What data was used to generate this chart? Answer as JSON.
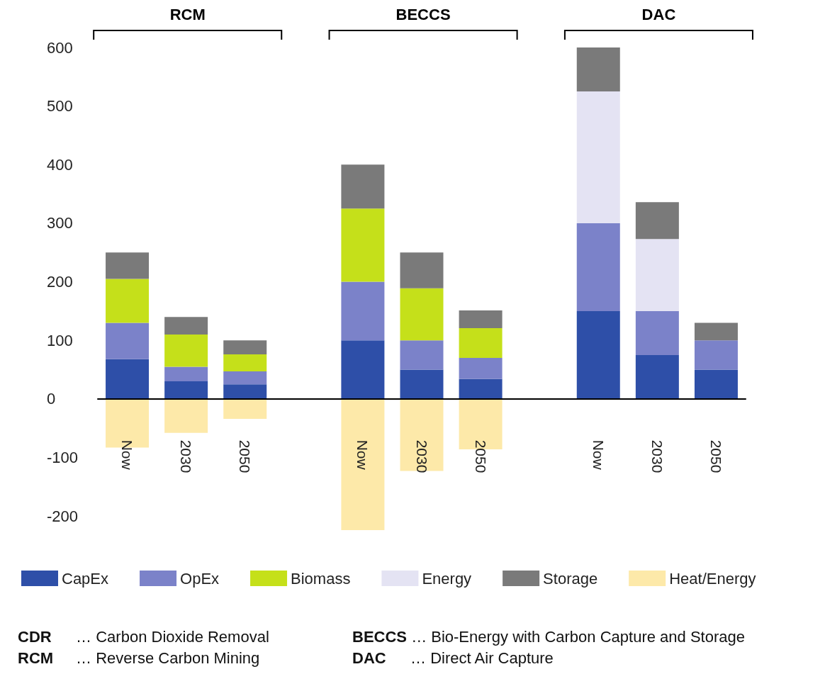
{
  "chart_data": {
    "type": "bar",
    "stacked": true,
    "categories": [
      "Now",
      "2030",
      "2050",
      null,
      "Now",
      "2030",
      "2050",
      null,
      "Now",
      "2030",
      "2050"
    ],
    "series": [
      {
        "name": "CapEx",
        "color": "#2e4fa8",
        "values": [
          68,
          30,
          25,
          null,
          100,
          50,
          34,
          null,
          150,
          75,
          50
        ]
      },
      {
        "name": "OpEx",
        "color": "#7b82c9",
        "values": [
          62,
          25,
          22,
          null,
          100,
          50,
          36,
          null,
          150,
          75,
          50
        ]
      },
      {
        "name": "Biomass",
        "color": "#c5e01a",
        "values": [
          75,
          55,
          29,
          null,
          125,
          89,
          51,
          null,
          null,
          null,
          null
        ]
      },
      {
        "name": "Energy",
        "color": "#e4e3f3",
        "values": [
          null,
          null,
          null,
          null,
          null,
          null,
          null,
          null,
          225,
          123,
          null
        ]
      },
      {
        "name": "Storage",
        "color": "#7a7a7a",
        "values": [
          45,
          30,
          24,
          null,
          75,
          61,
          30,
          null,
          75,
          63,
          30
        ]
      },
      {
        "name": "Heat/Energy",
        "color": "#fde9a9",
        "values": [
          -83,
          -58,
          -34,
          null,
          -224,
          -123,
          -86,
          null,
          null,
          null,
          null
        ]
      }
    ],
    "ylim": [
      -230,
      600
    ],
    "yticks": [
      -200,
      -100,
      0,
      100,
      200,
      300,
      400,
      500,
      600
    ],
    "legend": "bottom",
    "annotations": [
      "RCM",
      "BECCS",
      "DAC",
      "CDR … Carbon Dioxide Removal",
      "BECCS … Bio-Energy with Carbon Capture and Storage",
      "RCM … Reverse Carbon Mining",
      "DAC … Direct Air Capture"
    ]
  }
}
